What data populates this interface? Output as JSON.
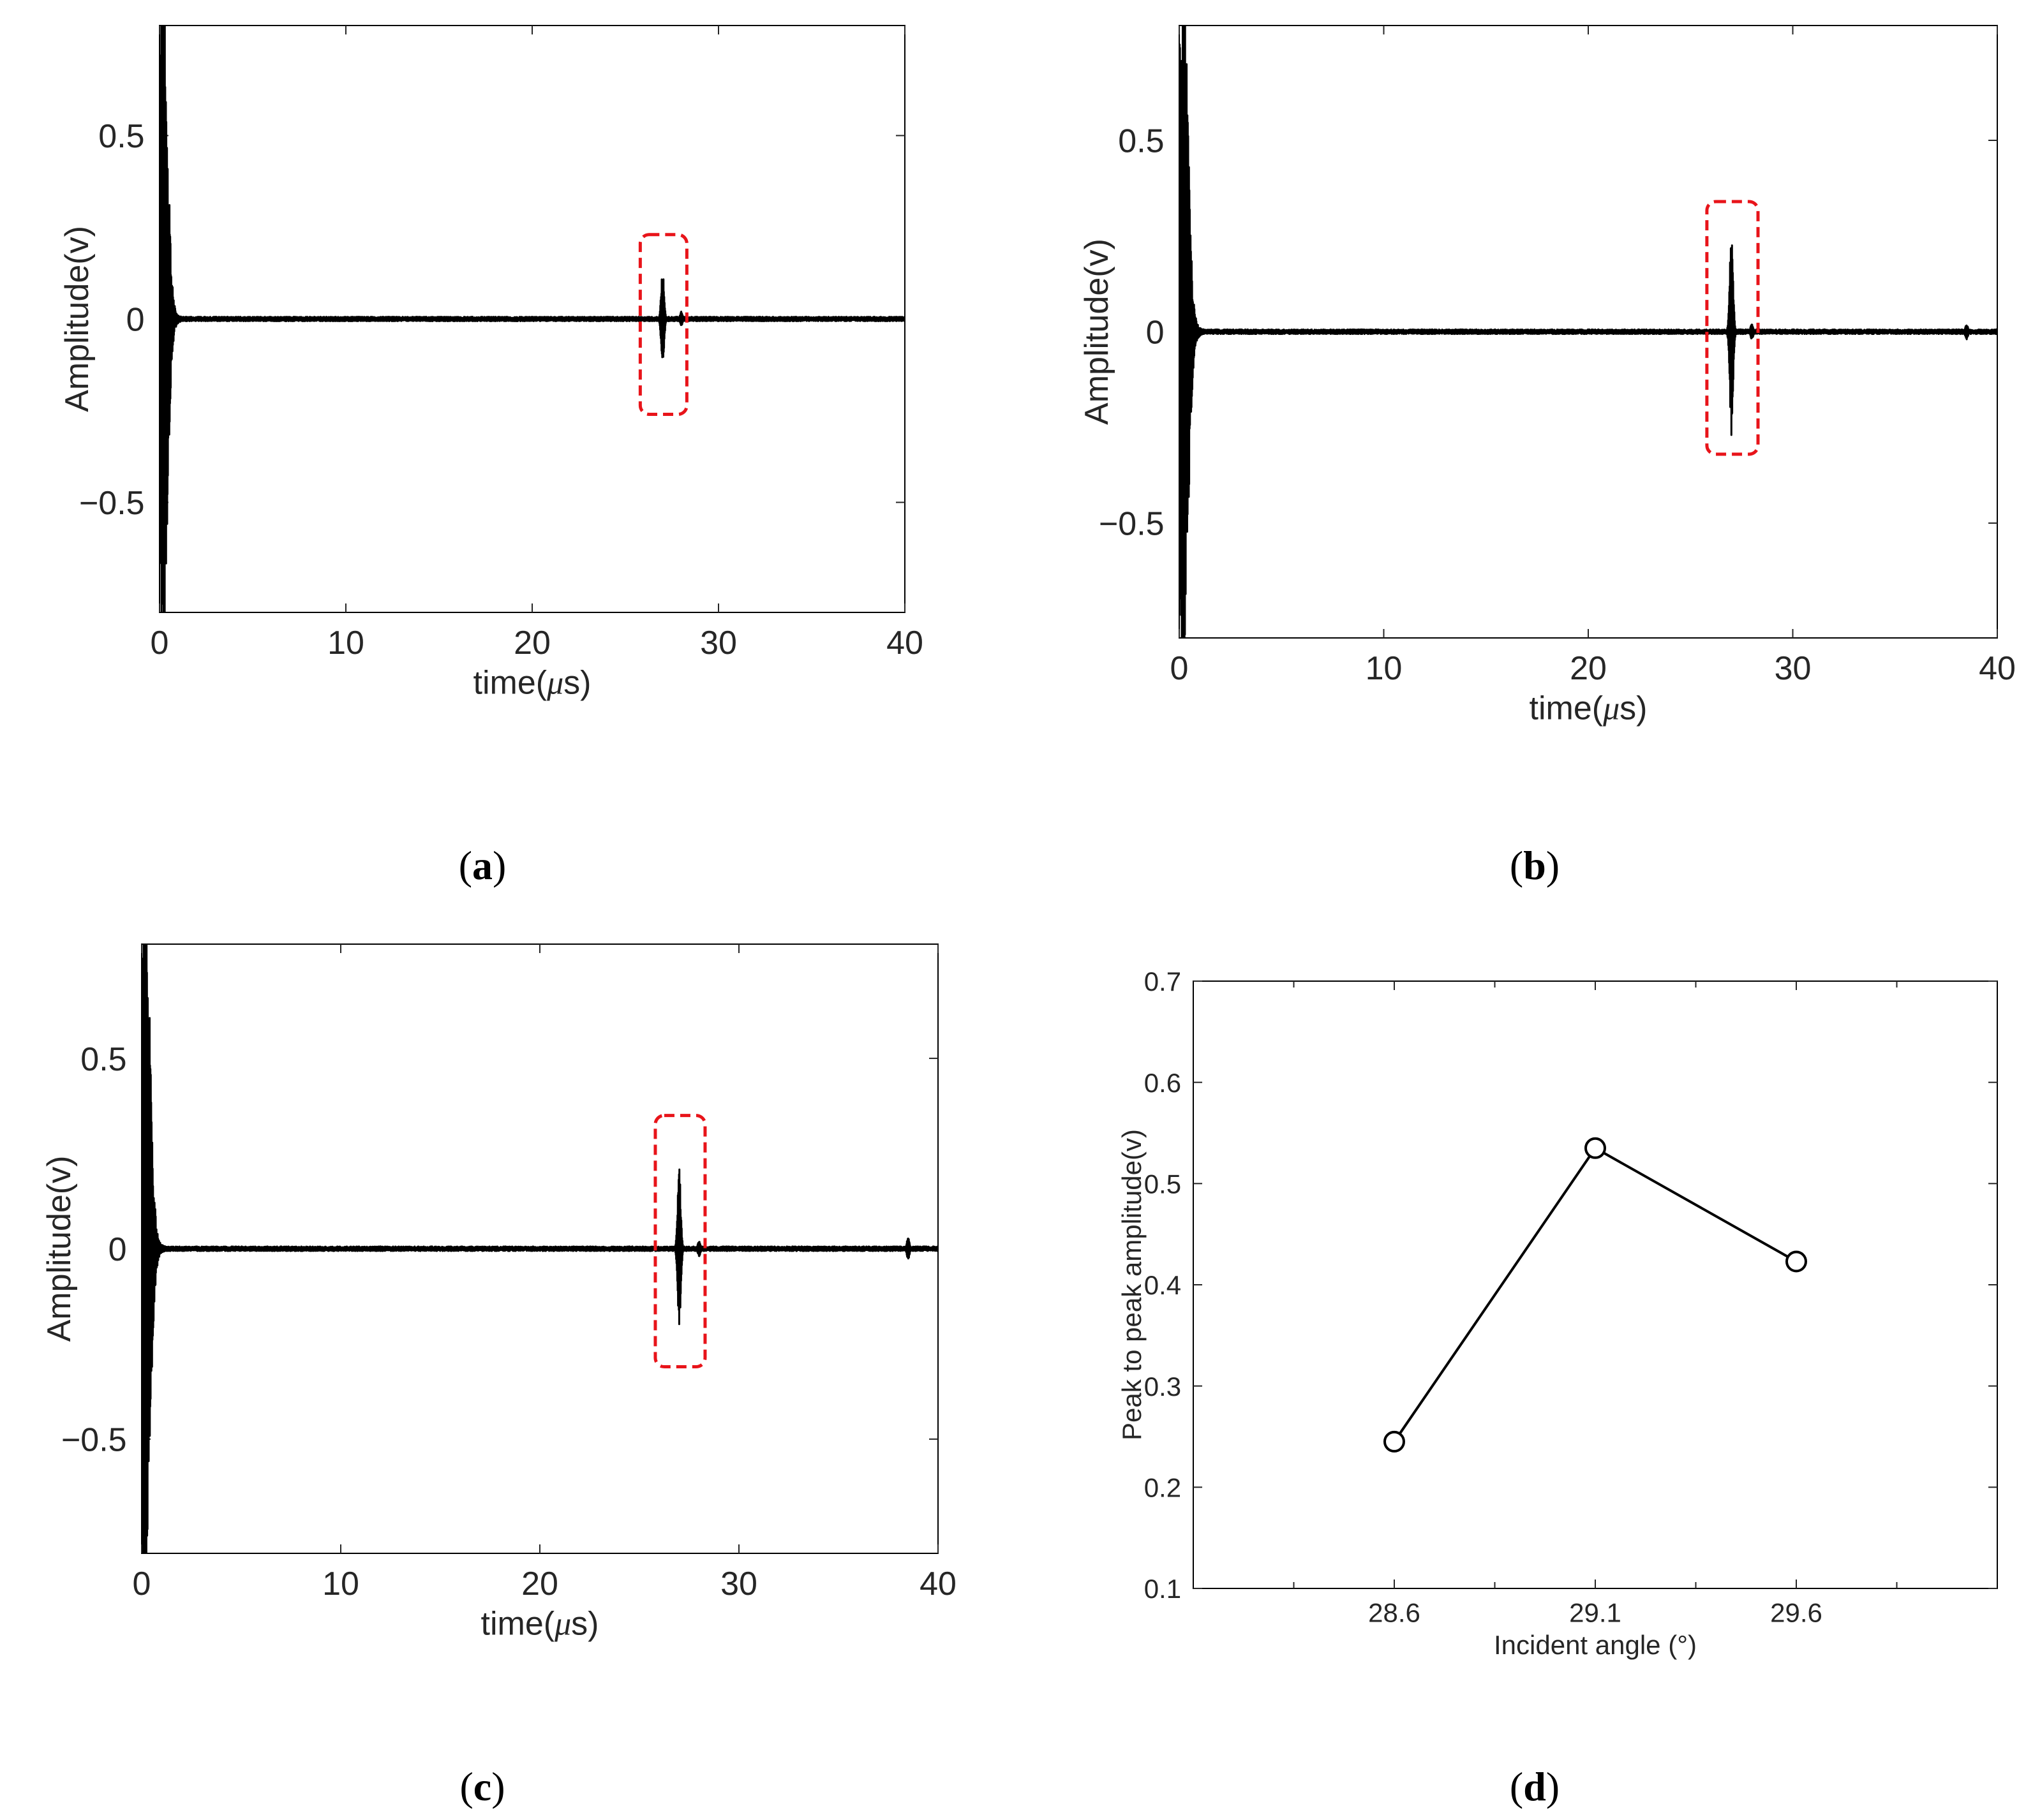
{
  "colors": {
    "signal": "#000000",
    "highlight": "#e8141a",
    "axis": "#262626",
    "frame": "#000000"
  },
  "chart_data": [
    {
      "type": "line",
      "panel_label": "(a)",
      "panel_letter": "a",
      "xlabel_prefix": "time(",
      "xlabel_mu": "μ",
      "xlabel_suffix": "s)",
      "ylabel": "Amplitude(v)",
      "xlim": [
        0,
        40
      ],
      "ylim": [
        -0.8,
        0.8
      ],
      "xticks": [
        0,
        10,
        20,
        30,
        40
      ],
      "xtick_labels": [
        "0",
        "10",
        "20",
        "30",
        "40"
      ],
      "yticks": [
        -0.5,
        0,
        0.5
      ],
      "ytick_labels": [
        "−0.5",
        "0",
        "0.5"
      ],
      "grid": false,
      "signal": {
        "initial_burst": {
          "t_start": 0.0,
          "t_end": 1.5,
          "peak": 0.8
        },
        "echoes": [
          {
            "t": 27.0,
            "amp": 0.135,
            "width": 0.35
          },
          {
            "t": 28.0,
            "amp": 0.02,
            "width": 0.3
          }
        ],
        "noise": 0.004
      },
      "highlight": {
        "x": [
          25.8,
          28.3
        ],
        "y": [
          -0.26,
          0.23
        ]
      }
    },
    {
      "type": "line",
      "panel_label": "(b)",
      "panel_letter": "b",
      "xlabel_prefix": "time(",
      "xlabel_mu": "μ",
      "xlabel_suffix": "s)",
      "ylabel": "Amplitude(v)",
      "xlim": [
        0,
        40
      ],
      "ylim": [
        -0.8,
        0.8
      ],
      "xticks": [
        0,
        10,
        20,
        30,
        40
      ],
      "xtick_labels": [
        "0",
        "10",
        "20",
        "30",
        "40"
      ],
      "yticks": [
        -0.5,
        0,
        0.5
      ],
      "ytick_labels": [
        "−0.5",
        "0",
        "0.5"
      ],
      "grid": false,
      "signal": {
        "initial_burst": {
          "t_start": 0.0,
          "t_end": 1.5,
          "peak": 0.8
        },
        "echoes": [
          {
            "t": 27.0,
            "amp": 0.27,
            "width": 0.35
          },
          {
            "t": 28.0,
            "amp": 0.02,
            "width": 0.3
          },
          {
            "t": 38.5,
            "amp": 0.02,
            "width": 0.3
          }
        ],
        "noise": 0.004
      },
      "highlight": {
        "x": [
          25.8,
          28.3
        ],
        "y": [
          -0.32,
          0.34
        ]
      }
    },
    {
      "type": "line",
      "panel_label": "(c)",
      "panel_letter": "c",
      "xlabel_prefix": "time(",
      "xlabel_mu": "μ",
      "xlabel_suffix": "s)",
      "ylabel": "Amplitude(v)",
      "xlim": [
        0,
        40
      ],
      "ylim": [
        -0.8,
        0.8
      ],
      "xticks": [
        0,
        10,
        20,
        30,
        40
      ],
      "xtick_labels": [
        "0",
        "10",
        "20",
        "30",
        "40"
      ],
      "yticks": [
        -0.5,
        0,
        0.5
      ],
      "ytick_labels": [
        "−0.5",
        "0",
        "0.5"
      ],
      "grid": false,
      "signal": {
        "initial_burst": {
          "t_start": 0.0,
          "t_end": 1.5,
          "peak": 0.8
        },
        "echoes": [
          {
            "t": 27.0,
            "amp": 0.21,
            "width": 0.35
          },
          {
            "t": 28.0,
            "amp": 0.02,
            "width": 0.3
          },
          {
            "t": 38.5,
            "amp": 0.03,
            "width": 0.3
          }
        ],
        "noise": 0.004
      },
      "highlight": {
        "x": [
          25.8,
          28.3
        ],
        "y": [
          -0.31,
          0.35
        ]
      }
    },
    {
      "type": "line",
      "panel_label": "(d)",
      "panel_letter": "d",
      "xlabel": "Incident angle (°)",
      "ylabel": "Peak to peak amplitude(v)",
      "xlim": [
        28.1,
        30.1
      ],
      "ylim": [
        0.1,
        0.7
      ],
      "xticks": [
        28.6,
        29.1,
        29.6
      ],
      "xtick_labels": [
        "28.6",
        "29.1",
        "29.6"
      ],
      "xminor": [
        28.35,
        28.85,
        29.35,
        29.85
      ],
      "yticks": [
        0.1,
        0.2,
        0.3,
        0.4,
        0.5,
        0.6,
        0.7
      ],
      "ytick_labels": [
        "0.1",
        "0.2",
        "0.3",
        "0.4",
        "0.5",
        "0.6",
        "0.7"
      ],
      "grid": false,
      "series": [
        {
          "name": "Peak to peak amplitude",
          "x": [
            28.6,
            29.1,
            29.6
          ],
          "values": [
            0.245,
            0.535,
            0.423
          ]
        }
      ]
    }
  ]
}
